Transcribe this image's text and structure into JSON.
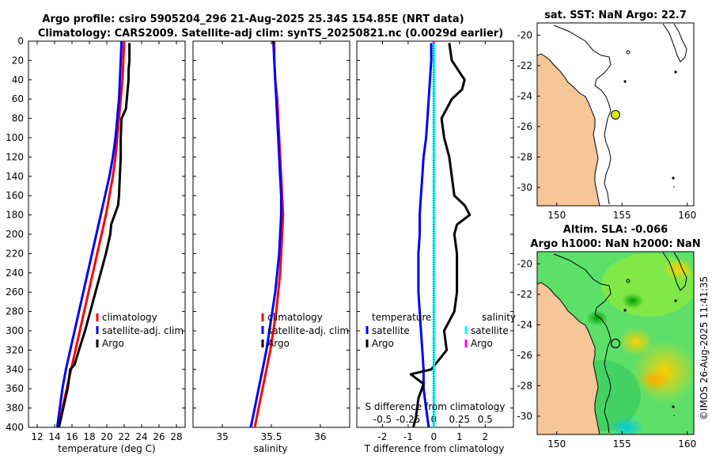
{
  "header": {
    "title_line1": "Argo profile: csiro 5905204_296 21-Aug-2025 25.34S 154.85E (NRT data)",
    "title_line2": "Climatology: CARS2009. Satellite-adj clim: synTS_20250821.nc (0.0029d earlier)"
  },
  "chart_data": [
    {
      "type": "line",
      "id": "temperature",
      "xlabel": "temperature (deg C)",
      "ylabel": "",
      "xlim": [
        11,
        29
      ],
      "ylim": [
        0,
        400
      ],
      "xticks": [
        "12",
        "14",
        "16",
        "18",
        "20",
        "22",
        "24",
        "26",
        "28"
      ],
      "yticks": [
        "0",
        "20",
        "40",
        "60",
        "80",
        "100",
        "120",
        "140",
        "160",
        "180",
        "200",
        "220",
        "240",
        "260",
        "280",
        "300",
        "320",
        "340",
        "360",
        "380",
        "400"
      ],
      "legend": [
        "climatology",
        "satellite-adj. clim",
        "Argo"
      ],
      "series": [
        {
          "name": "climatology",
          "color": "#ff0000",
          "depth": [
            0,
            20,
            40,
            60,
            80,
            100,
            120,
            140,
            160,
            180,
            200,
            220,
            240,
            260,
            280,
            300,
            320,
            340,
            360,
            380,
            400
          ],
          "values": [
            22.0,
            21.9,
            21.8,
            21.6,
            21.4,
            21.2,
            21.0,
            20.7,
            20.3,
            19.9,
            19.4,
            18.9,
            18.4,
            17.9,
            17.4,
            16.9,
            16.4,
            15.9,
            15.4,
            14.9,
            14.5
          ]
        },
        {
          "name": "satellite-adj. clim",
          "color": "#0000ff",
          "depth": [
            0,
            20,
            40,
            60,
            80,
            100,
            120,
            140,
            160,
            180,
            200,
            220,
            240,
            260,
            280,
            300,
            320,
            340,
            360,
            380,
            400
          ],
          "values": [
            21.7,
            21.6,
            21.5,
            21.4,
            21.2,
            21.0,
            20.7,
            20.3,
            19.8,
            19.3,
            18.8,
            18.3,
            17.8,
            17.3,
            16.8,
            16.3,
            15.8,
            15.3,
            14.9,
            14.6,
            14.3
          ]
        },
        {
          "name": "Argo",
          "color": "#000000",
          "depth": [
            2,
            10,
            20,
            30,
            40,
            50,
            60,
            70,
            80,
            100,
            120,
            140,
            160,
            170,
            180,
            190,
            200,
            220,
            240,
            260,
            280,
            300,
            320,
            335,
            340,
            360,
            380,
            400
          ],
          "values": [
            22.6,
            22.6,
            22.6,
            22.5,
            22.5,
            22.4,
            22.3,
            22.2,
            21.7,
            21.6,
            21.6,
            21.5,
            21.4,
            21.3,
            20.9,
            20.5,
            20.4,
            19.9,
            19.3,
            18.7,
            18.1,
            17.5,
            16.8,
            16.3,
            15.8,
            15.5,
            15.0,
            14.5
          ]
        }
      ]
    },
    {
      "type": "line",
      "id": "salinity",
      "xlabel": "salinity",
      "ylabel": "",
      "xlim": [
        34.7,
        36.3
      ],
      "ylim": [
        0,
        400
      ],
      "xticks": [
        "35",
        "35.5",
        "36"
      ],
      "legend": [
        "climatology",
        "satellite-adj. clim",
        "Argo"
      ],
      "series": [
        {
          "name": "climatology",
          "color": "#ff0000",
          "depth": [
            0,
            20,
            40,
            60,
            80,
            100,
            120,
            140,
            160,
            180,
            200,
            220,
            240,
            260,
            280,
            300,
            320,
            340,
            360,
            380,
            400
          ],
          "values": [
            35.53,
            35.53,
            35.54,
            35.56,
            35.57,
            35.58,
            35.59,
            35.6,
            35.61,
            35.62,
            35.61,
            35.6,
            35.59,
            35.57,
            35.55,
            35.52,
            35.49,
            35.45,
            35.41,
            35.37,
            35.33
          ]
        },
        {
          "name": "satellite-adj. clim",
          "color": "#0000ff",
          "depth": [
            0,
            20,
            40,
            60,
            80,
            100,
            120,
            140,
            160,
            180,
            200,
            220,
            240,
            260,
            280,
            300,
            320,
            340,
            360,
            380,
            400
          ],
          "values": [
            35.52,
            35.53,
            35.54,
            35.55,
            35.56,
            35.57,
            35.58,
            35.59,
            35.6,
            35.6,
            35.59,
            35.58,
            35.56,
            35.54,
            35.51,
            35.48,
            35.45,
            35.41,
            35.37,
            35.33,
            35.29
          ]
        },
        {
          "name": "Argo",
          "color": "#000000",
          "depth": [
            0,
            2
          ],
          "values": [
            35.52,
            35.52
          ]
        }
      ]
    },
    {
      "type": "line",
      "id": "difference",
      "xlabel": "T difference from climatology",
      "xlabel_top": "S difference from climatology",
      "xlim": [
        -3,
        3.1
      ],
      "ylim": [
        0,
        400
      ],
      "xticks": [
        "-2",
        "-1",
        "0",
        "1",
        "2"
      ],
      "xticks_top": [
        "-0.5",
        "-0.25",
        "0",
        "0.25",
        "0.5"
      ],
      "legend_left_title": "temperature",
      "legend_right_title": "salinity",
      "legend": [
        "satellite",
        "Argo",
        "satellite",
        "Argo"
      ],
      "series": [
        {
          "name": "T satellite",
          "color": "#0000ff",
          "depth": [
            2,
            20,
            40,
            60,
            80,
            100,
            120,
            140,
            160,
            180,
            200,
            220,
            240,
            260,
            280,
            300,
            320,
            340,
            360,
            380,
            400
          ],
          "values": [
            -0.1,
            -0.1,
            -0.15,
            -0.2,
            -0.25,
            -0.3,
            -0.4,
            -0.45,
            -0.5,
            -0.55,
            -0.55,
            -0.6,
            -0.6,
            -0.6,
            -0.55,
            -0.5,
            -0.45,
            -0.4,
            -0.4,
            -0.3,
            -0.2
          ]
        },
        {
          "name": "T Argo",
          "color": "#000000",
          "depth": [
            2,
            20,
            40,
            50,
            60,
            70,
            80,
            100,
            120,
            140,
            160,
            170,
            180,
            190,
            200,
            220,
            240,
            260,
            280,
            300,
            320,
            330,
            340,
            345,
            355,
            370,
            390,
            400
          ],
          "values": [
            0.6,
            0.7,
            1.2,
            1.1,
            0.7,
            0.5,
            0.3,
            0.4,
            0.6,
            0.7,
            0.8,
            1.2,
            1.4,
            0.9,
            0.8,
            0.9,
            0.9,
            0.9,
            0.8,
            0.4,
            0.5,
            0.2,
            -0.1,
            -0.9,
            -0.4,
            -0.6,
            -0.7,
            -0.8
          ]
        },
        {
          "name": "S satellite",
          "color": "#00ffff",
          "depth": [
            0,
            400
          ],
          "values": [
            0.0,
            0.0
          ]
        },
        {
          "name": "S Argo",
          "color": "#ff00ff",
          "depth": [
            0,
            2
          ],
          "values": [
            0.0,
            0.0
          ]
        }
      ]
    }
  ],
  "map_sst": {
    "title": "sat. SST: NaN Argo: 22.7",
    "xticks": [
      "150",
      "155",
      "160"
    ],
    "yticks": [
      "-20",
      "-22",
      "-24",
      "-26",
      "-28",
      "-30"
    ]
  },
  "map_sla": {
    "title_line1": "Altim. SLA: -0.066",
    "title_line2": "Argo h1000: NaN h2000: NaN",
    "xticks": [
      "150",
      "155",
      "160"
    ],
    "yticks": [
      "-20",
      "-22",
      "-24",
      "-26",
      "-28",
      "-30"
    ]
  },
  "footer": {
    "stamp": "©IMOS 26-Aug-2025 11:41:35"
  }
}
